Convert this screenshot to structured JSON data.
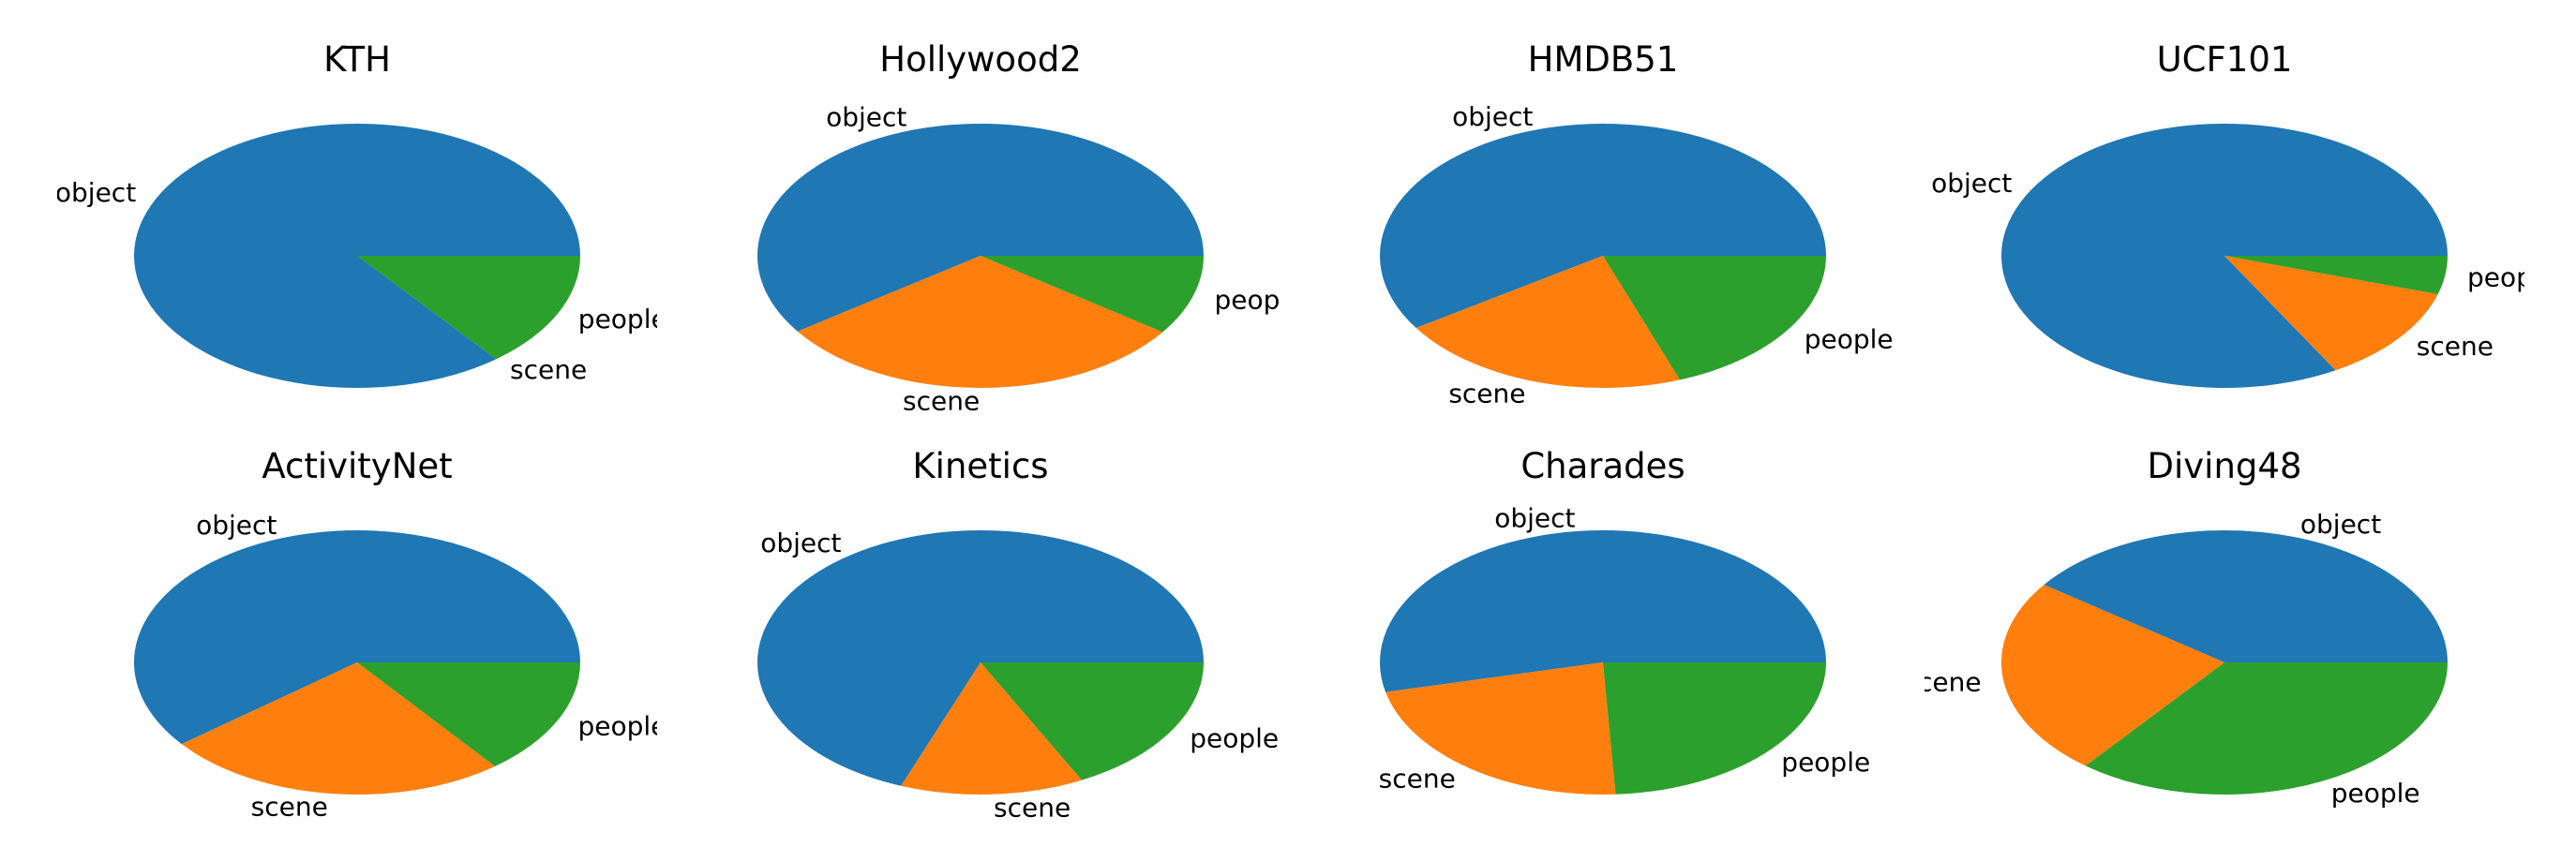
{
  "colors": {
    "object": "#1f77b4",
    "scene": "#ff7f0e",
    "people": "#2ca02c"
  },
  "chart_data": [
    {
      "type": "pie",
      "title": "KTH",
      "labels": [
        "object",
        "scene",
        "people"
      ],
      "values": [
        0.857,
        0.0,
        0.143
      ]
    },
    {
      "type": "pie",
      "title": "Hollywood2",
      "labels": [
        "object",
        "scene",
        "people"
      ],
      "values": [
        0.597,
        0.305,
        0.098
      ]
    },
    {
      "type": "pie",
      "title": "HMDB51",
      "labels": [
        "object",
        "scene",
        "people"
      ],
      "values": [
        0.592,
        0.214,
        0.194
      ]
    },
    {
      "type": "pie",
      "title": "UCF101",
      "labels": [
        "object",
        "scene",
        "people"
      ],
      "values": [
        0.833,
        0.12,
        0.047
      ]
    },
    {
      "type": "pie",
      "title": "ActivityNet",
      "labels": [
        "object",
        "scene",
        "people"
      ],
      "values": [
        0.606,
        0.25,
        0.144
      ]
    },
    {
      "type": "pie",
      "title": "Kinetics",
      "labels": [
        "object",
        "scene",
        "people"
      ],
      "values": [
        0.692,
        0.133,
        0.175
      ]
    },
    {
      "type": "pie",
      "title": "Charades",
      "labels": [
        "object",
        "scene",
        "people"
      ],
      "values": [
        0.536,
        0.223,
        0.241
      ]
    },
    {
      "type": "pie",
      "title": "Diving48",
      "labels": [
        "object",
        "scene",
        "people"
      ],
      "values": [
        0.4,
        0.243,
        0.357
      ]
    }
  ]
}
